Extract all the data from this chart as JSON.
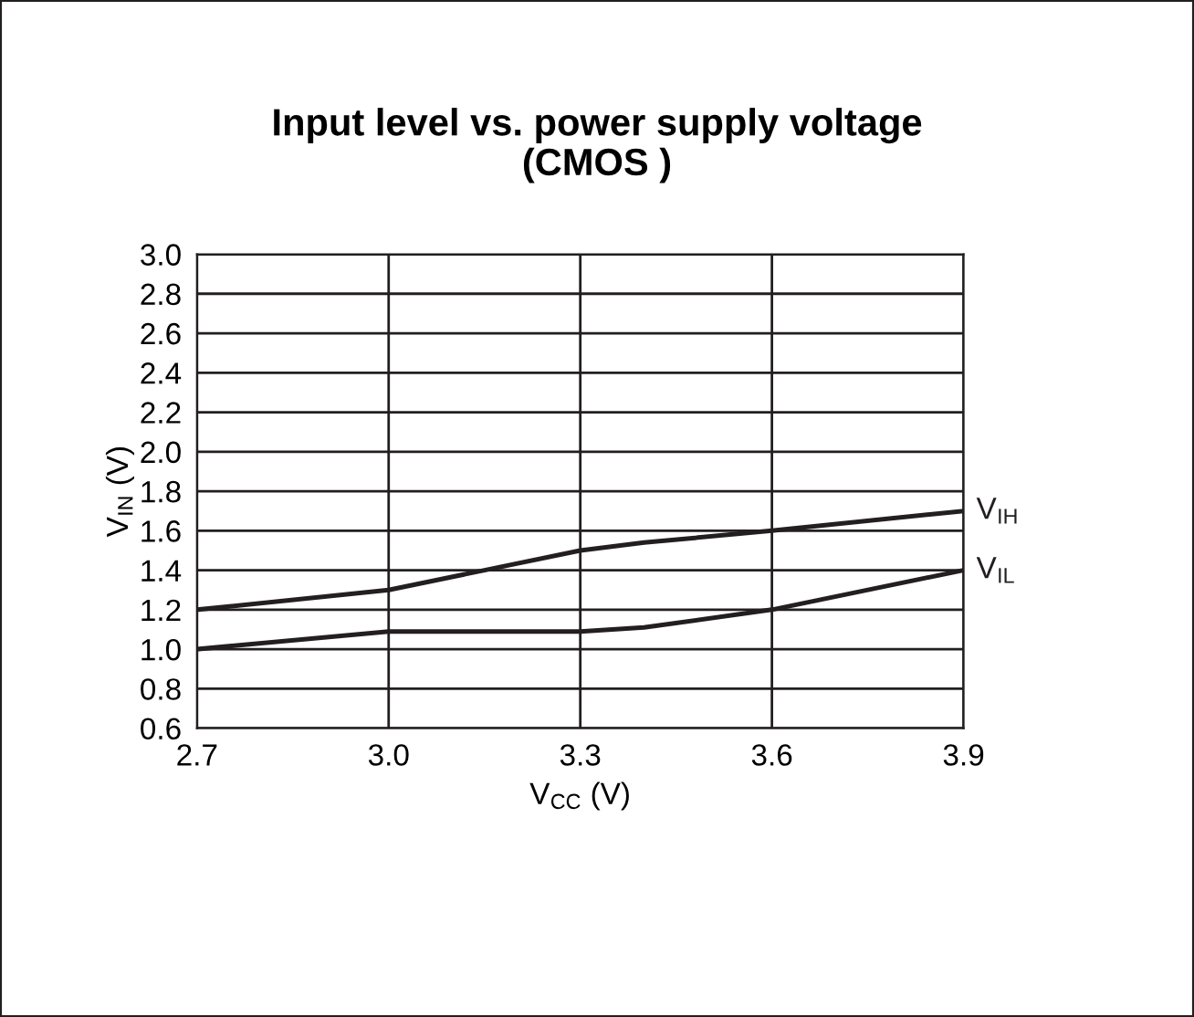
{
  "chart_data": {
    "type": "line",
    "title": "Input level vs. power supply voltage\n(CMOS )",
    "xlabel": "V$_{CC}$ (V)",
    "ylabel": "V$_{IN}$ (V)",
    "series": [
      {
        "name": "V$_{IH}$",
        "color": "#231f20",
        "x": [
          2.7,
          3.0,
          3.15,
          3.3,
          3.4,
          3.6,
          3.9
        ],
        "values": [
          1.2,
          1.3,
          1.4,
          1.5,
          1.54,
          1.6,
          1.7
        ]
      },
      {
        "name": "V$_{IL}$",
        "color": "#231f20",
        "x": [
          2.7,
          3.0,
          3.3,
          3.4,
          3.6,
          3.9
        ],
        "values": [
          1.0,
          1.09,
          1.09,
          1.11,
          1.2,
          1.4
        ]
      }
    ],
    "xlim": [
      2.7,
      3.9
    ],
    "xticks": [
      2.7,
      {
        "value": 3,
        "label": "3.0"
      },
      3.3,
      3.6,
      3.9
    ],
    "ylim": [
      0.6,
      3.0
    ],
    "yticks": [
      0.6,
      0.8,
      {
        "value": 1,
        "label": "1.0"
      },
      1.2,
      1.4,
      1.6,
      1.8,
      {
        "value": 2,
        "label": "2.0"
      },
      2.2,
      2.4,
      2.6,
      2.8,
      {
        "value": 3,
        "label": "3.0"
      }
    ],
    "grid": true,
    "legend": false,
    "marker": "none",
    "line_style": "solid"
  }
}
